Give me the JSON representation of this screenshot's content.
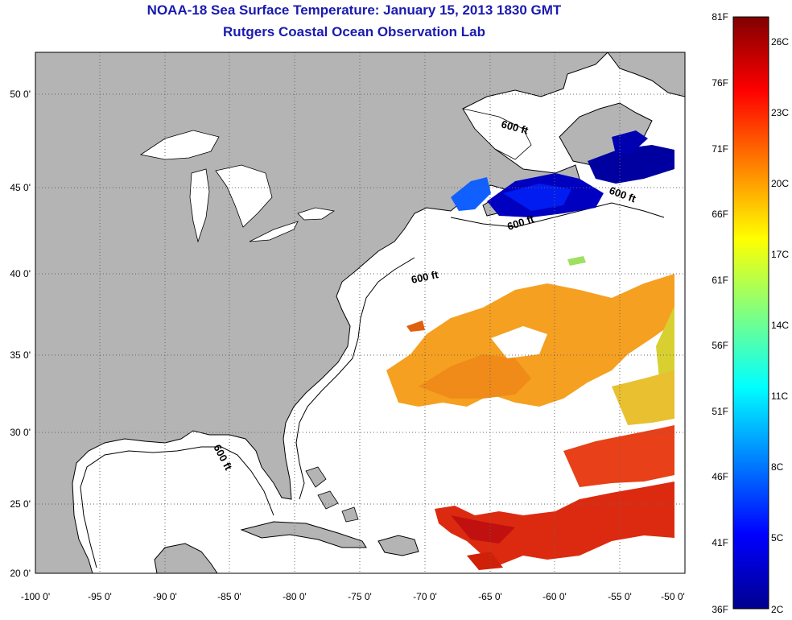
{
  "title": {
    "line1": "NOAA-18 Sea Surface Temperature:  January 15, 2013 1830 GMT",
    "line2": "Rutgers Coastal Ocean Observation Lab"
  },
  "map": {
    "lon_range": [
      -100,
      -50
    ],
    "lat_range": [
      20,
      52.5
    ],
    "lon_ticks": [
      "-100 0'",
      "-95 0'",
      "-90 0'",
      "-85 0'",
      "-80 0'",
      "-75 0'",
      "-70 0'",
      "-65 0'",
      "-60 0'",
      "-55 0'",
      "-50 0'"
    ],
    "lat_ticks": [
      "20 0'",
      "25 0'",
      "30 0'",
      "35 0'",
      "40 0'",
      "45 0'",
      "50 0'"
    ],
    "contour_labels": [
      "600 ft",
      "600 ft",
      "600 ft",
      "600 ft",
      "600 ft"
    ],
    "colors": {
      "land": "#b4b4b4",
      "ocean": "#ffffff",
      "grid": "#666666"
    }
  },
  "colorbar": {
    "fahrenheit_labels": [
      "81F",
      "76F",
      "71F",
      "66F",
      "61F",
      "56F",
      "51F",
      "46F",
      "41F",
      "36F"
    ],
    "celsius_labels": [
      "26C",
      "23C",
      "20C",
      "17C",
      "14C",
      "11C",
      "8C",
      "5C",
      "2C"
    ],
    "range_f": [
      36,
      81
    ],
    "colormap": [
      "#00008f",
      "#0000ff",
      "#0080ff",
      "#00ffff",
      "#80ff80",
      "#ffff00",
      "#ff8000",
      "#ff0000",
      "#800000"
    ]
  }
}
